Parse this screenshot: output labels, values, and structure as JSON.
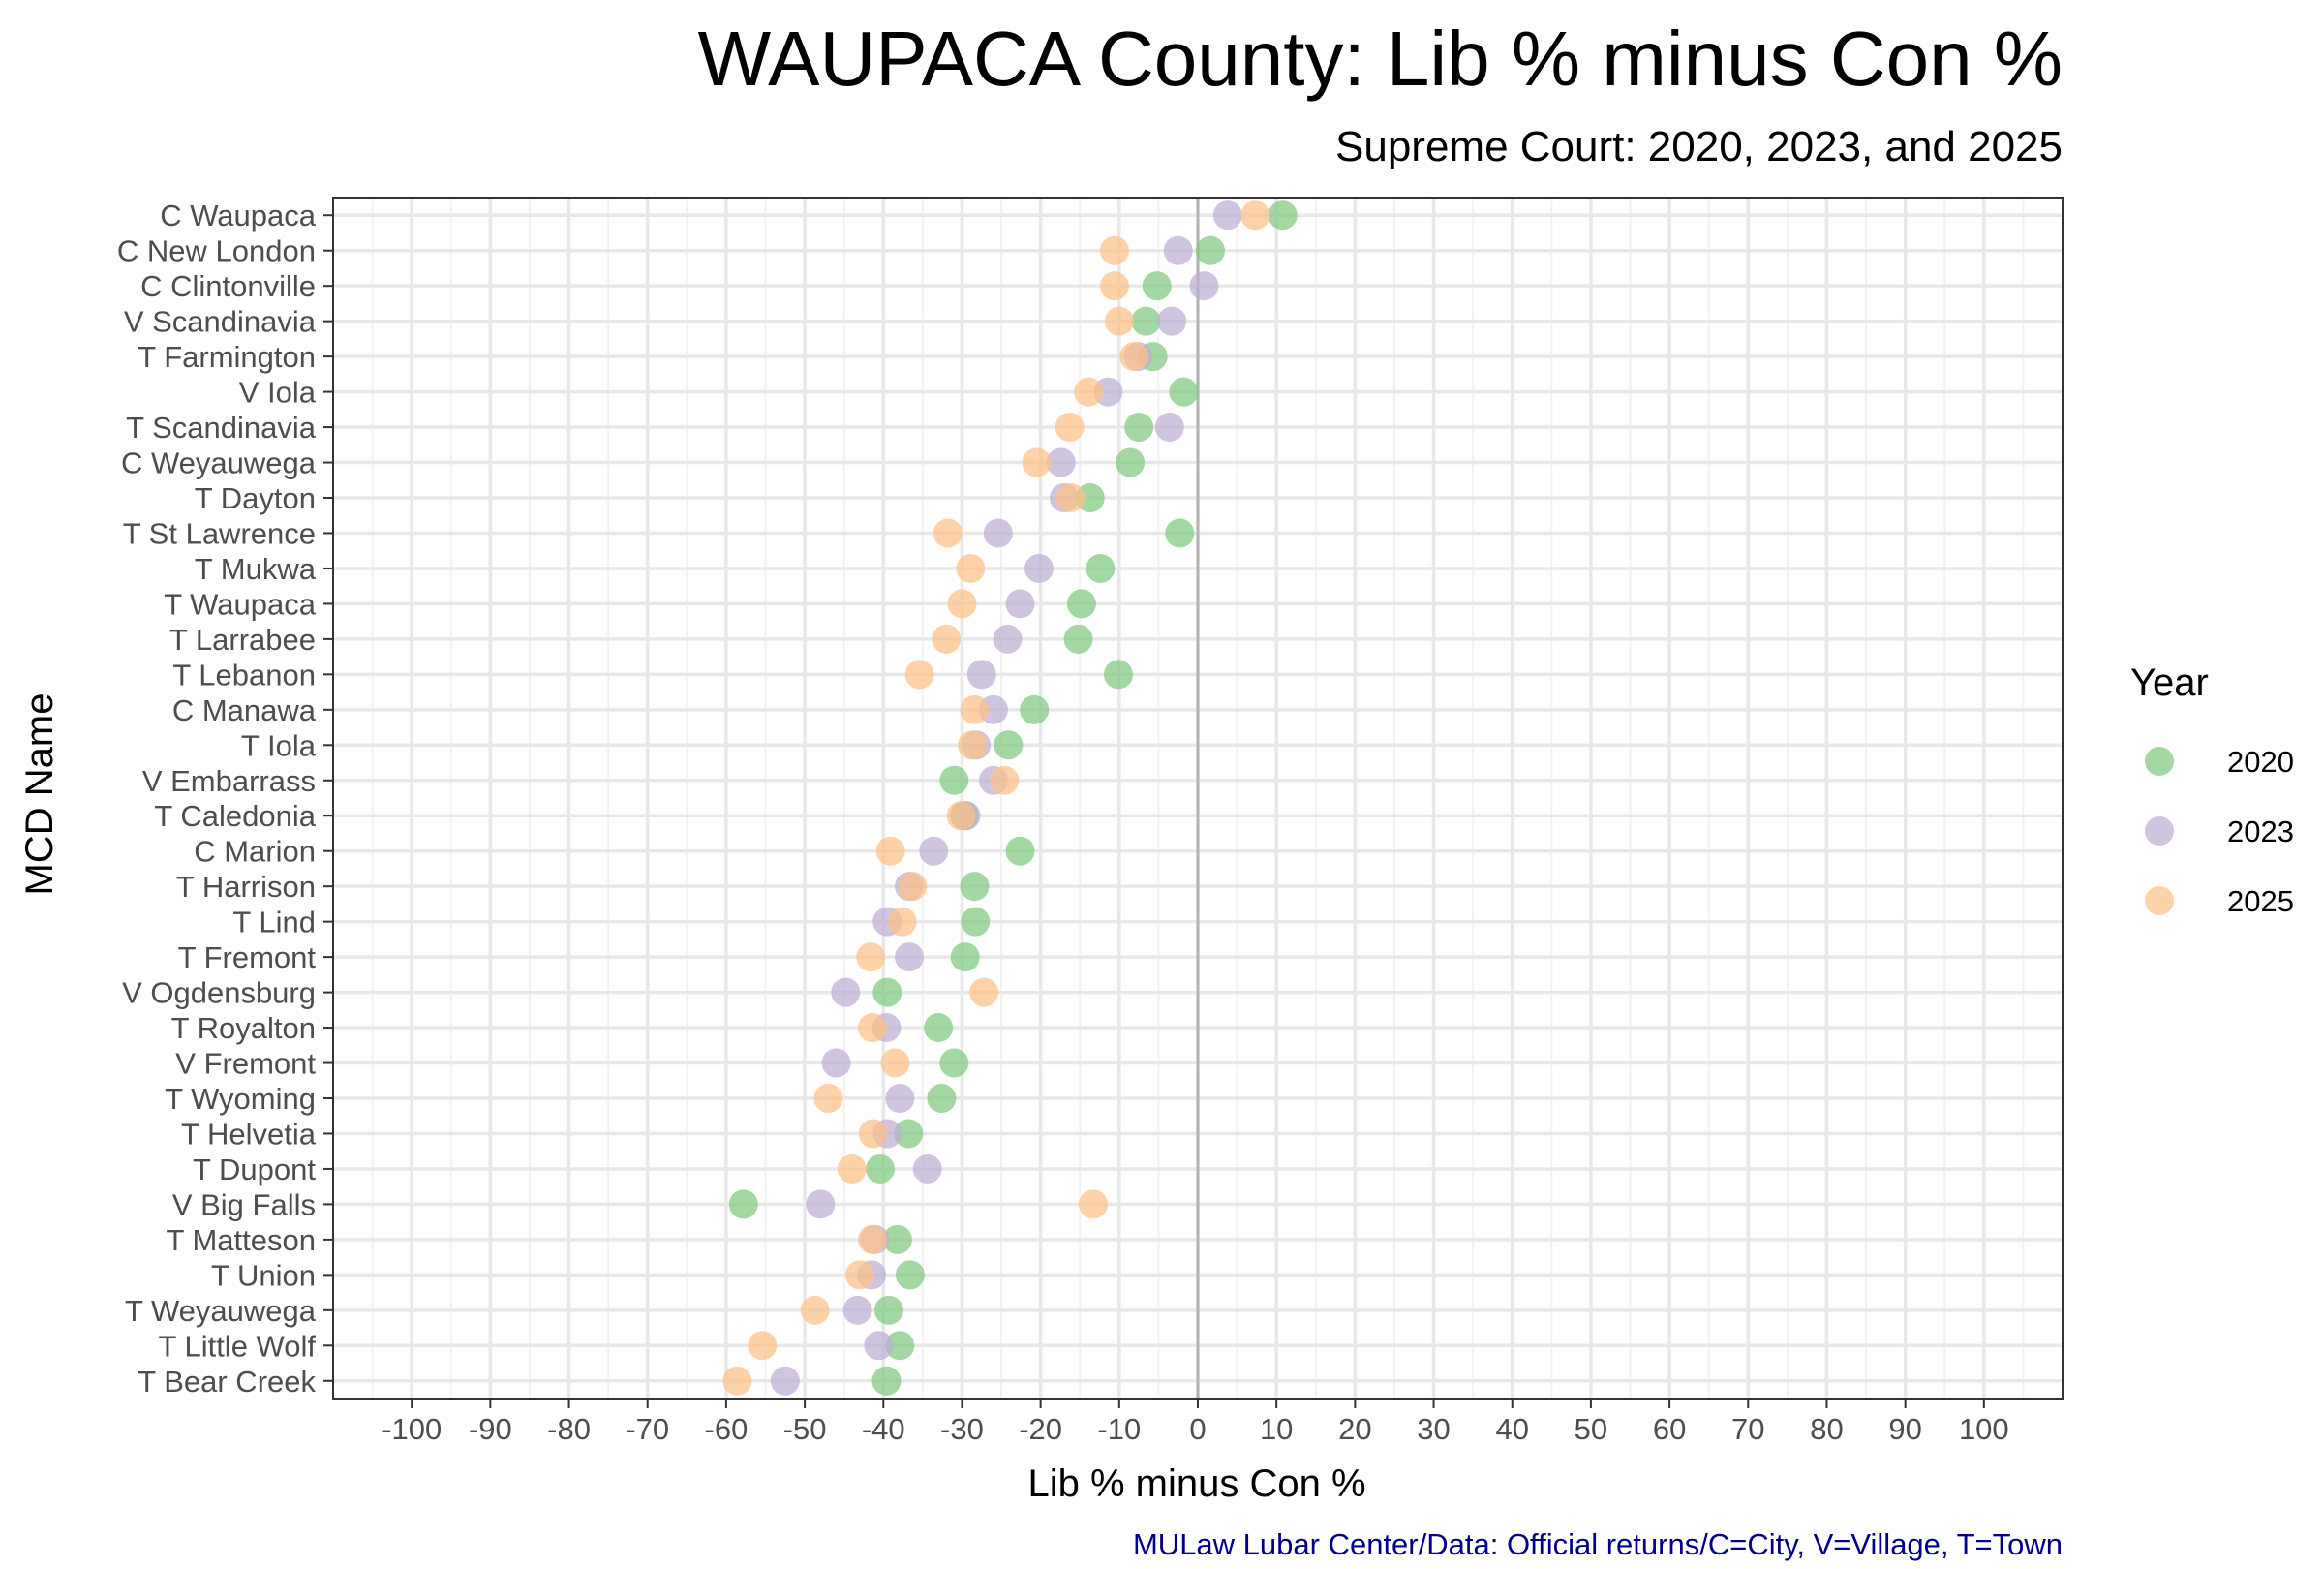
{
  "chart_data": {
    "type": "scatter",
    "title": "WAUPACA County: Lib % minus Con %",
    "subtitle": "Supreme Court: 2020, 2023, and 2025",
    "xlabel": "Lib % minus Con %",
    "ylabel": "MCD Name",
    "caption": "MULaw Lubar Center/Data: Official returns/C=City, V=Village, T=Town",
    "xlim": [
      -110,
      110
    ],
    "xticks": [
      -100,
      -90,
      -80,
      -70,
      -60,
      -50,
      -40,
      -30,
      -20,
      -10,
      0,
      10,
      20,
      30,
      40,
      50,
      60,
      70,
      80,
      90,
      100
    ],
    "grid": true,
    "reference_line_x": 0,
    "legend": {
      "title": "Year",
      "position": "right"
    },
    "categories": [
      "C Waupaca",
      "C New London",
      "C Clintonville",
      "V Scandinavia",
      "T Farmington",
      "V Iola",
      "T Scandinavia",
      "C Weyauwega",
      "T Dayton",
      "T St Lawrence",
      "T Mukwa",
      "T Waupaca",
      "T Larrabee",
      "T Lebanon",
      "C Manawa",
      "T Iola",
      "V Embarrass",
      "T Caledonia",
      "C Marion",
      "T Harrison",
      "T Lind",
      "T Fremont",
      "V Ogdensburg",
      "T Royalton",
      "V Fremont",
      "T Wyoming",
      "T Helvetia",
      "T Dupont",
      "V Big Falls",
      "T Matteson",
      "T Union",
      "T Weyauwega",
      "T Little Wolf",
      "T Bear Creek"
    ],
    "series": [
      {
        "name": "2020",
        "color": "#7fc97f",
        "values": [
          10.8,
          1.6,
          -5.2,
          -6.6,
          -5.7,
          -1.8,
          -7.5,
          -8.6,
          -13.7,
          -2.3,
          -12.4,
          -14.8,
          -15.2,
          -10.1,
          -20.8,
          -24.1,
          -31.0,
          -29.7,
          -22.6,
          -28.4,
          -28.3,
          -29.6,
          -39.5,
          -33.0,
          -31.0,
          -32.6,
          -36.8,
          -40.4,
          -57.8,
          -38.2,
          -36.6,
          -39.3,
          -37.9,
          -39.6
        ]
      },
      {
        "name": "2023",
        "color": "#beaed4",
        "values": [
          3.8,
          -2.5,
          0.8,
          -3.3,
          -7.6,
          -11.4,
          -3.6,
          -17.4,
          -17.0,
          -25.4,
          -20.2,
          -22.6,
          -24.2,
          -27.5,
          -26.0,
          -28.2,
          -26.0,
          -29.5,
          -33.6,
          -36.7,
          -39.5,
          -36.7,
          -44.8,
          -39.6,
          -46.0,
          -37.9,
          -39.5,
          -34.4,
          -48.0,
          -41.1,
          -41.5,
          -43.3,
          -40.6,
          -52.5
        ]
      },
      {
        "name": "2025",
        "color": "#fdc086",
        "values": [
          7.3,
          -10.6,
          -10.6,
          -10.0,
          -8.1,
          -13.9,
          -16.3,
          -20.5,
          -16.2,
          -31.8,
          -28.9,
          -30.0,
          -32.0,
          -35.4,
          -28.4,
          -28.7,
          -24.6,
          -30.1,
          -39.1,
          -36.3,
          -37.6,
          -41.6,
          -27.2,
          -41.4,
          -38.5,
          -47.0,
          -41.3,
          -44.0,
          -13.3,
          -41.4,
          -43.0,
          -48.7,
          -55.4,
          -58.6
        ]
      }
    ]
  }
}
